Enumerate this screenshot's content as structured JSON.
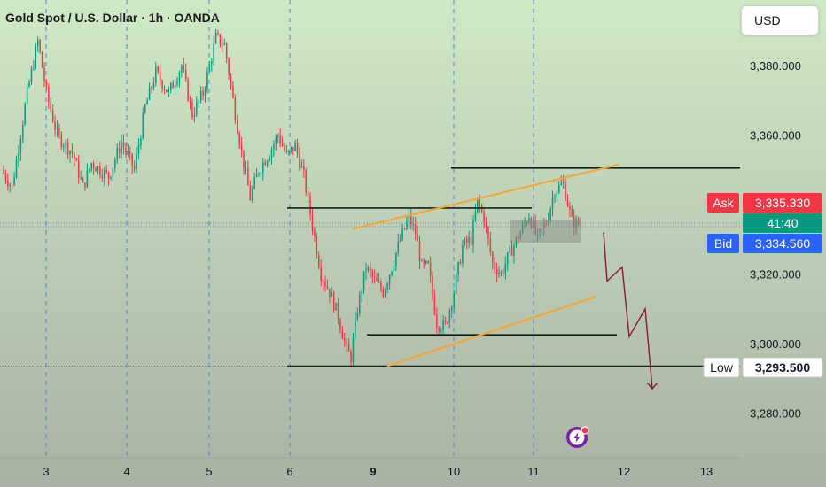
{
  "header": {
    "symbol_title": "Gold Spot / U.S. Dollar · 1h · OANDA",
    "currency": "USD"
  },
  "chart_data": {
    "type": "candlestick",
    "x_tick_labels": [
      "3",
      "4",
      "5",
      "6",
      "9",
      "10",
      "11",
      "12",
      "13"
    ],
    "y_tick_labels": [
      "3,380.000",
      "3,360.000",
      "3,320.000",
      "3,300.000",
      "3,280.000"
    ],
    "y_ticks": [
      3380,
      3360,
      3320,
      3300,
      3280
    ],
    "ylim": [
      3276,
      3393
    ],
    "price_markers": {
      "ask": {
        "label": "Ask",
        "value": "3,335.330"
      },
      "countdown": "41:40",
      "bid": {
        "label": "Bid",
        "value": "3,334.560"
      },
      "low": {
        "label": "Low",
        "value": "3,293.500"
      }
    },
    "horizontal_levels": [
      3350.5,
      3339.0,
      3302.5,
      3293.5
    ],
    "channel_lines": [
      [
        3333,
        3351.5
      ],
      [
        3293.5,
        3313.5
      ]
    ],
    "projected_path": [
      3332,
      3318,
      3322,
      3302,
      3310,
      3287
    ],
    "colors": {
      "background_top": "#cfe9c6",
      "background_bottom": "#a9b2a4",
      "up": "#089981",
      "down": "#f23645",
      "channel": "#f2a73b",
      "level": "#0b2318",
      "projection": "#8b1a2b",
      "ask": "#f23645",
      "bid": "#2962ff",
      "countdown": "#089981"
    }
  }
}
